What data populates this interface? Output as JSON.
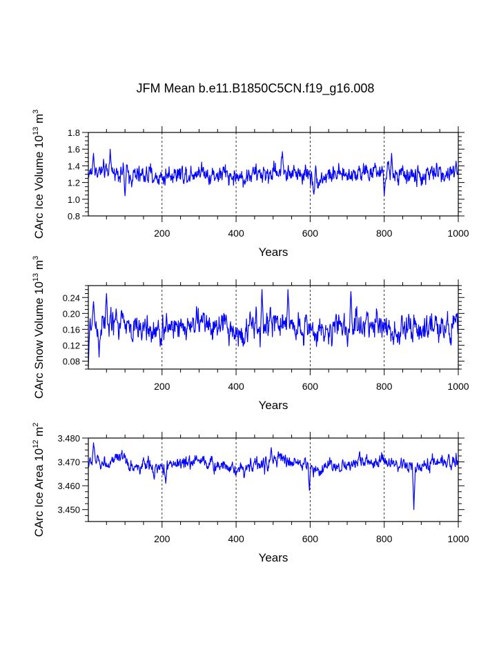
{
  "figure": {
    "title": "JFM Mean b.e11.B1850C5CN.f19_g16.008"
  },
  "chart_data": [
    {
      "type": "line",
      "id": "ice-volume",
      "ylabel": {
        "main": "CArc Ice Volume 10",
        "sup": "13",
        "unit": " m",
        "unit_sup": "3"
      },
      "xlabel": "Years",
      "xlim": [
        1,
        1000
      ],
      "ylim": [
        0.8,
        1.8
      ],
      "xticks": [
        "200",
        "400",
        "600",
        "800",
        "1000"
      ],
      "xtick_values": [
        200,
        400,
        600,
        800,
        1000
      ],
      "yticks": [
        "0.8",
        "1.0",
        "1.2",
        "1.4",
        "1.6",
        "1.8"
      ],
      "ytick_values": [
        0.8,
        1.0,
        1.2,
        1.4,
        1.6,
        1.8
      ],
      "color": "#0000ff",
      "series": [
        {
          "name": "ice volume",
          "mean": 1.3,
          "amp": 0.1,
          "min": 1.03,
          "max": 1.6,
          "events": [
            [
              15,
              1.55
            ],
            [
              60,
              1.6
            ],
            [
              100,
              1.04
            ],
            [
              525,
              1.57
            ],
            [
              610,
              1.06
            ],
            [
              800,
              1.04
            ],
            [
              820,
              1.55
            ]
          ]
        }
      ]
    },
    {
      "type": "line",
      "id": "snow-volume",
      "ylabel": {
        "main": "CArc Snow Volume 10",
        "sup": "13",
        "unit": " m",
        "unit_sup": "3"
      },
      "xlabel": "Years",
      "xlim": [
        1,
        1000
      ],
      "ylim": [
        0.06,
        0.27
      ],
      "xticks": [
        "200",
        "400",
        "600",
        "800",
        "1000"
      ],
      "xtick_values": [
        200,
        400,
        600,
        800,
        1000
      ],
      "yticks": [
        "0.08",
        "0.12",
        "0.16",
        "0.20",
        "0.24"
      ],
      "ytick_values": [
        0.08,
        0.12,
        0.16,
        0.2,
        0.24
      ],
      "color": "#0000ff",
      "series": [
        {
          "name": "snow volume",
          "mean": 0.165,
          "amp": 0.03,
          "min": 0.065,
          "max": 0.26,
          "events": [
            [
              1,
              0.065
            ],
            [
              15,
              0.23
            ],
            [
              50,
              0.25
            ],
            [
              470,
              0.26
            ],
            [
              540,
              0.26
            ],
            [
              710,
              0.255
            ],
            [
              30,
              0.09
            ]
          ]
        }
      ]
    },
    {
      "type": "line",
      "id": "ice-area",
      "ylabel": {
        "main": "CArc Ice Area 10",
        "sup": "12",
        "unit": " m",
        "unit_sup": "2"
      },
      "xlabel": "Years",
      "xlim": [
        1,
        1000
      ],
      "ylim": [
        3.445,
        3.48
      ],
      "xticks": [
        "200",
        "400",
        "600",
        "800",
        "1000"
      ],
      "xtick_values": [
        200,
        400,
        600,
        800,
        1000
      ],
      "yticks": [
        "3.450",
        "3.460",
        "3.470",
        "3.480"
      ],
      "ytick_values": [
        3.45,
        3.46,
        3.47,
        3.48
      ],
      "color": "#0000ff",
      "series": [
        {
          "name": "ice area",
          "mean": 3.469,
          "amp": 0.0025,
          "min": 3.45,
          "max": 3.478,
          "events": [
            [
              15,
              3.478
            ],
            [
              495,
              3.476
            ],
            [
              598,
              3.458
            ],
            [
              880,
              3.45
            ],
            [
              210,
              3.461
            ]
          ]
        }
      ]
    }
  ]
}
